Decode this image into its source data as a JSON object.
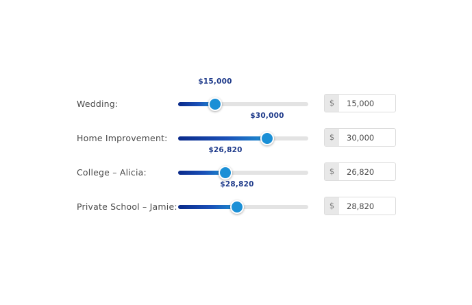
{
  "colors": {
    "fill_start": "#0a2a8a",
    "fill_end": "#1e8fd0",
    "thumb": "#1a8fd6",
    "value_label": "#1e3a8a",
    "track": "#e3e3e3"
  },
  "sliders": [
    {
      "label": "Wedding:",
      "value_display": "$15,000",
      "currency": "$",
      "amount": "15,000",
      "fill_percent": 28.4
    },
    {
      "label": "Home Improvement:",
      "value_display": "$30,000",
      "currency": "$",
      "amount": "30,000",
      "fill_percent": 68.4
    },
    {
      "label": "College – Alicia:",
      "value_display": "$26,820",
      "currency": "$",
      "amount": "26,820",
      "fill_percent": 36.3
    },
    {
      "label": "Private School – Jamie:",
      "value_display": "$28,820",
      "currency": "$",
      "amount": "28,820",
      "fill_percent": 45.3
    }
  ]
}
